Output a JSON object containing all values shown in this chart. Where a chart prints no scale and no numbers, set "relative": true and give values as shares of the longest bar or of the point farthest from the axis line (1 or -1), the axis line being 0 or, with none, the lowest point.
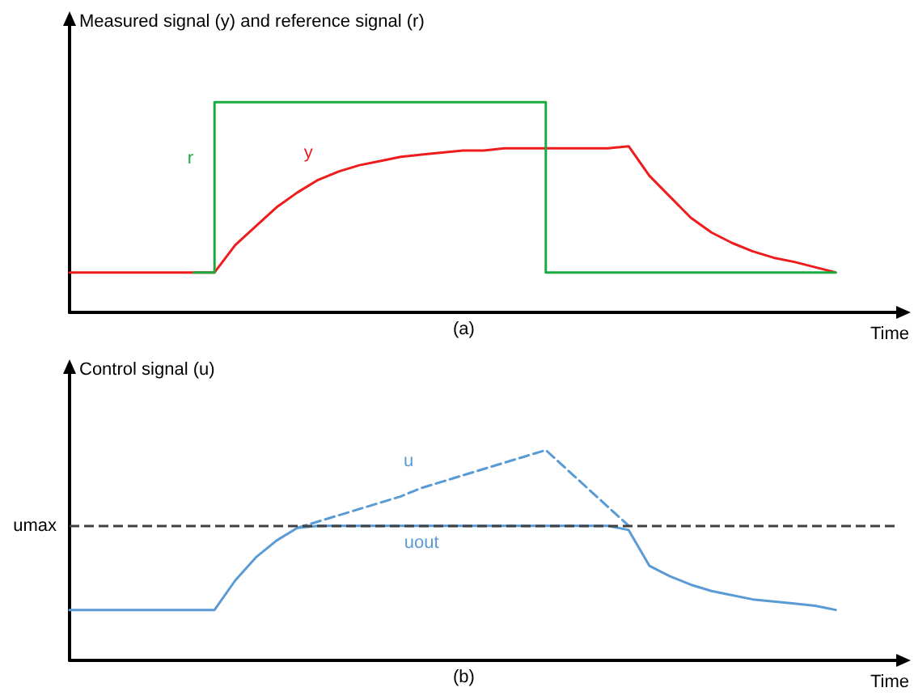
{
  "chart_data": [
    {
      "type": "line",
      "ylabel": "Measured signal (y) and reference signal (r)",
      "xlabel": "Time",
      "annotations": [
        "(a)"
      ],
      "relative": true,
      "grid": false,
      "legend": false,
      "marker": "none",
      "categories": [
        null,
        null,
        null,
        null,
        null,
        null,
        null,
        null,
        null,
        null,
        null,
        null,
        null,
        null,
        null,
        null,
        null,
        null,
        null,
        null,
        null,
        null,
        null,
        null,
        null,
        null,
        null,
        null,
        null,
        null,
        null,
        null,
        null,
        null,
        null,
        null,
        null,
        null,
        null,
        null,
        null
      ],
      "series": [
        {
          "name": "r",
          "type": "step",
          "color": "#1aab40",
          "line_style": "solid",
          "values": [
            null,
            null,
            null,
            null,
            null,
            null,
            0.19,
            1,
            1,
            1,
            1,
            1,
            1,
            1,
            1,
            1,
            1,
            1,
            1,
            1,
            1,
            1,
            1,
            0.19,
            0.19,
            0.19,
            0.19,
            0.19,
            0.19,
            0.19,
            0.19,
            0.19,
            0.19,
            0.19,
            0.19,
            0.19,
            0.19,
            0.19,
            null,
            null,
            null
          ]
        },
        {
          "name": "y",
          "color": "#ee1c1c",
          "line_style": "solid",
          "values": [
            0.19,
            0.19,
            0.19,
            0.19,
            0.19,
            0.19,
            0.19,
            0.19,
            0.32,
            0.41,
            0.5,
            0.57,
            0.63,
            0.67,
            0.7,
            0.72,
            0.74,
            0.75,
            0.76,
            0.77,
            0.77,
            0.78,
            0.78,
            0.78,
            0.78,
            0.78,
            0.78,
            0.79,
            0.65,
            0.55,
            0.45,
            0.38,
            0.33,
            0.29,
            0.26,
            0.24,
            0.215,
            0.19,
            null,
            null,
            null
          ]
        }
      ]
    },
    {
      "type": "line",
      "ylabel": "Control signal (u)",
      "xlabel": "Time",
      "annotations": [
        "(b)"
      ],
      "relative": true,
      "grid": false,
      "legend": false,
      "marker": "none",
      "categories": [
        null,
        null,
        null,
        null,
        null,
        null,
        null,
        null,
        null,
        null,
        null,
        null,
        null,
        null,
        null,
        null,
        null,
        null,
        null,
        null,
        null,
        null,
        null,
        null,
        null,
        null,
        null,
        null,
        null,
        null,
        null,
        null,
        null,
        null,
        null,
        null,
        null,
        null,
        null,
        null,
        null
      ],
      "ref_lines": [
        {
          "axis": "y",
          "value": 0.64,
          "label": "umax",
          "color": "#404040",
          "line_style": "dashed"
        }
      ],
      "series": [
        {
          "name": "u",
          "color": "#5b9bd5",
          "line_style": "dashed",
          "values": [
            null,
            null,
            null,
            null,
            null,
            null,
            null,
            null,
            null,
            null,
            null,
            0.63,
            0.66,
            0.69,
            0.72,
            0.75,
            0.78,
            0.82,
            0.85,
            0.88,
            0.91,
            0.94,
            0.97,
            1,
            0.91,
            0.82,
            0.73,
            0.64,
            null,
            null,
            null,
            null,
            null,
            null,
            null,
            null,
            null,
            null,
            null,
            null,
            null
          ]
        },
        {
          "name": "uout",
          "color": "#5b9bd5",
          "line_style": "solid",
          "values": [
            0.24,
            0.24,
            0.24,
            0.24,
            0.24,
            0.24,
            0.24,
            0.24,
            0.38,
            0.49,
            0.57,
            0.63,
            0.64,
            0.64,
            0.64,
            0.64,
            0.64,
            0.64,
            0.64,
            0.64,
            0.64,
            0.64,
            0.64,
            0.64,
            0.64,
            0.64,
            0.64,
            0.62,
            0.45,
            0.4,
            0.36,
            0.33,
            0.31,
            0.29,
            0.28,
            0.27,
            0.26,
            0.24,
            null,
            null,
            null
          ]
        }
      ]
    }
  ]
}
